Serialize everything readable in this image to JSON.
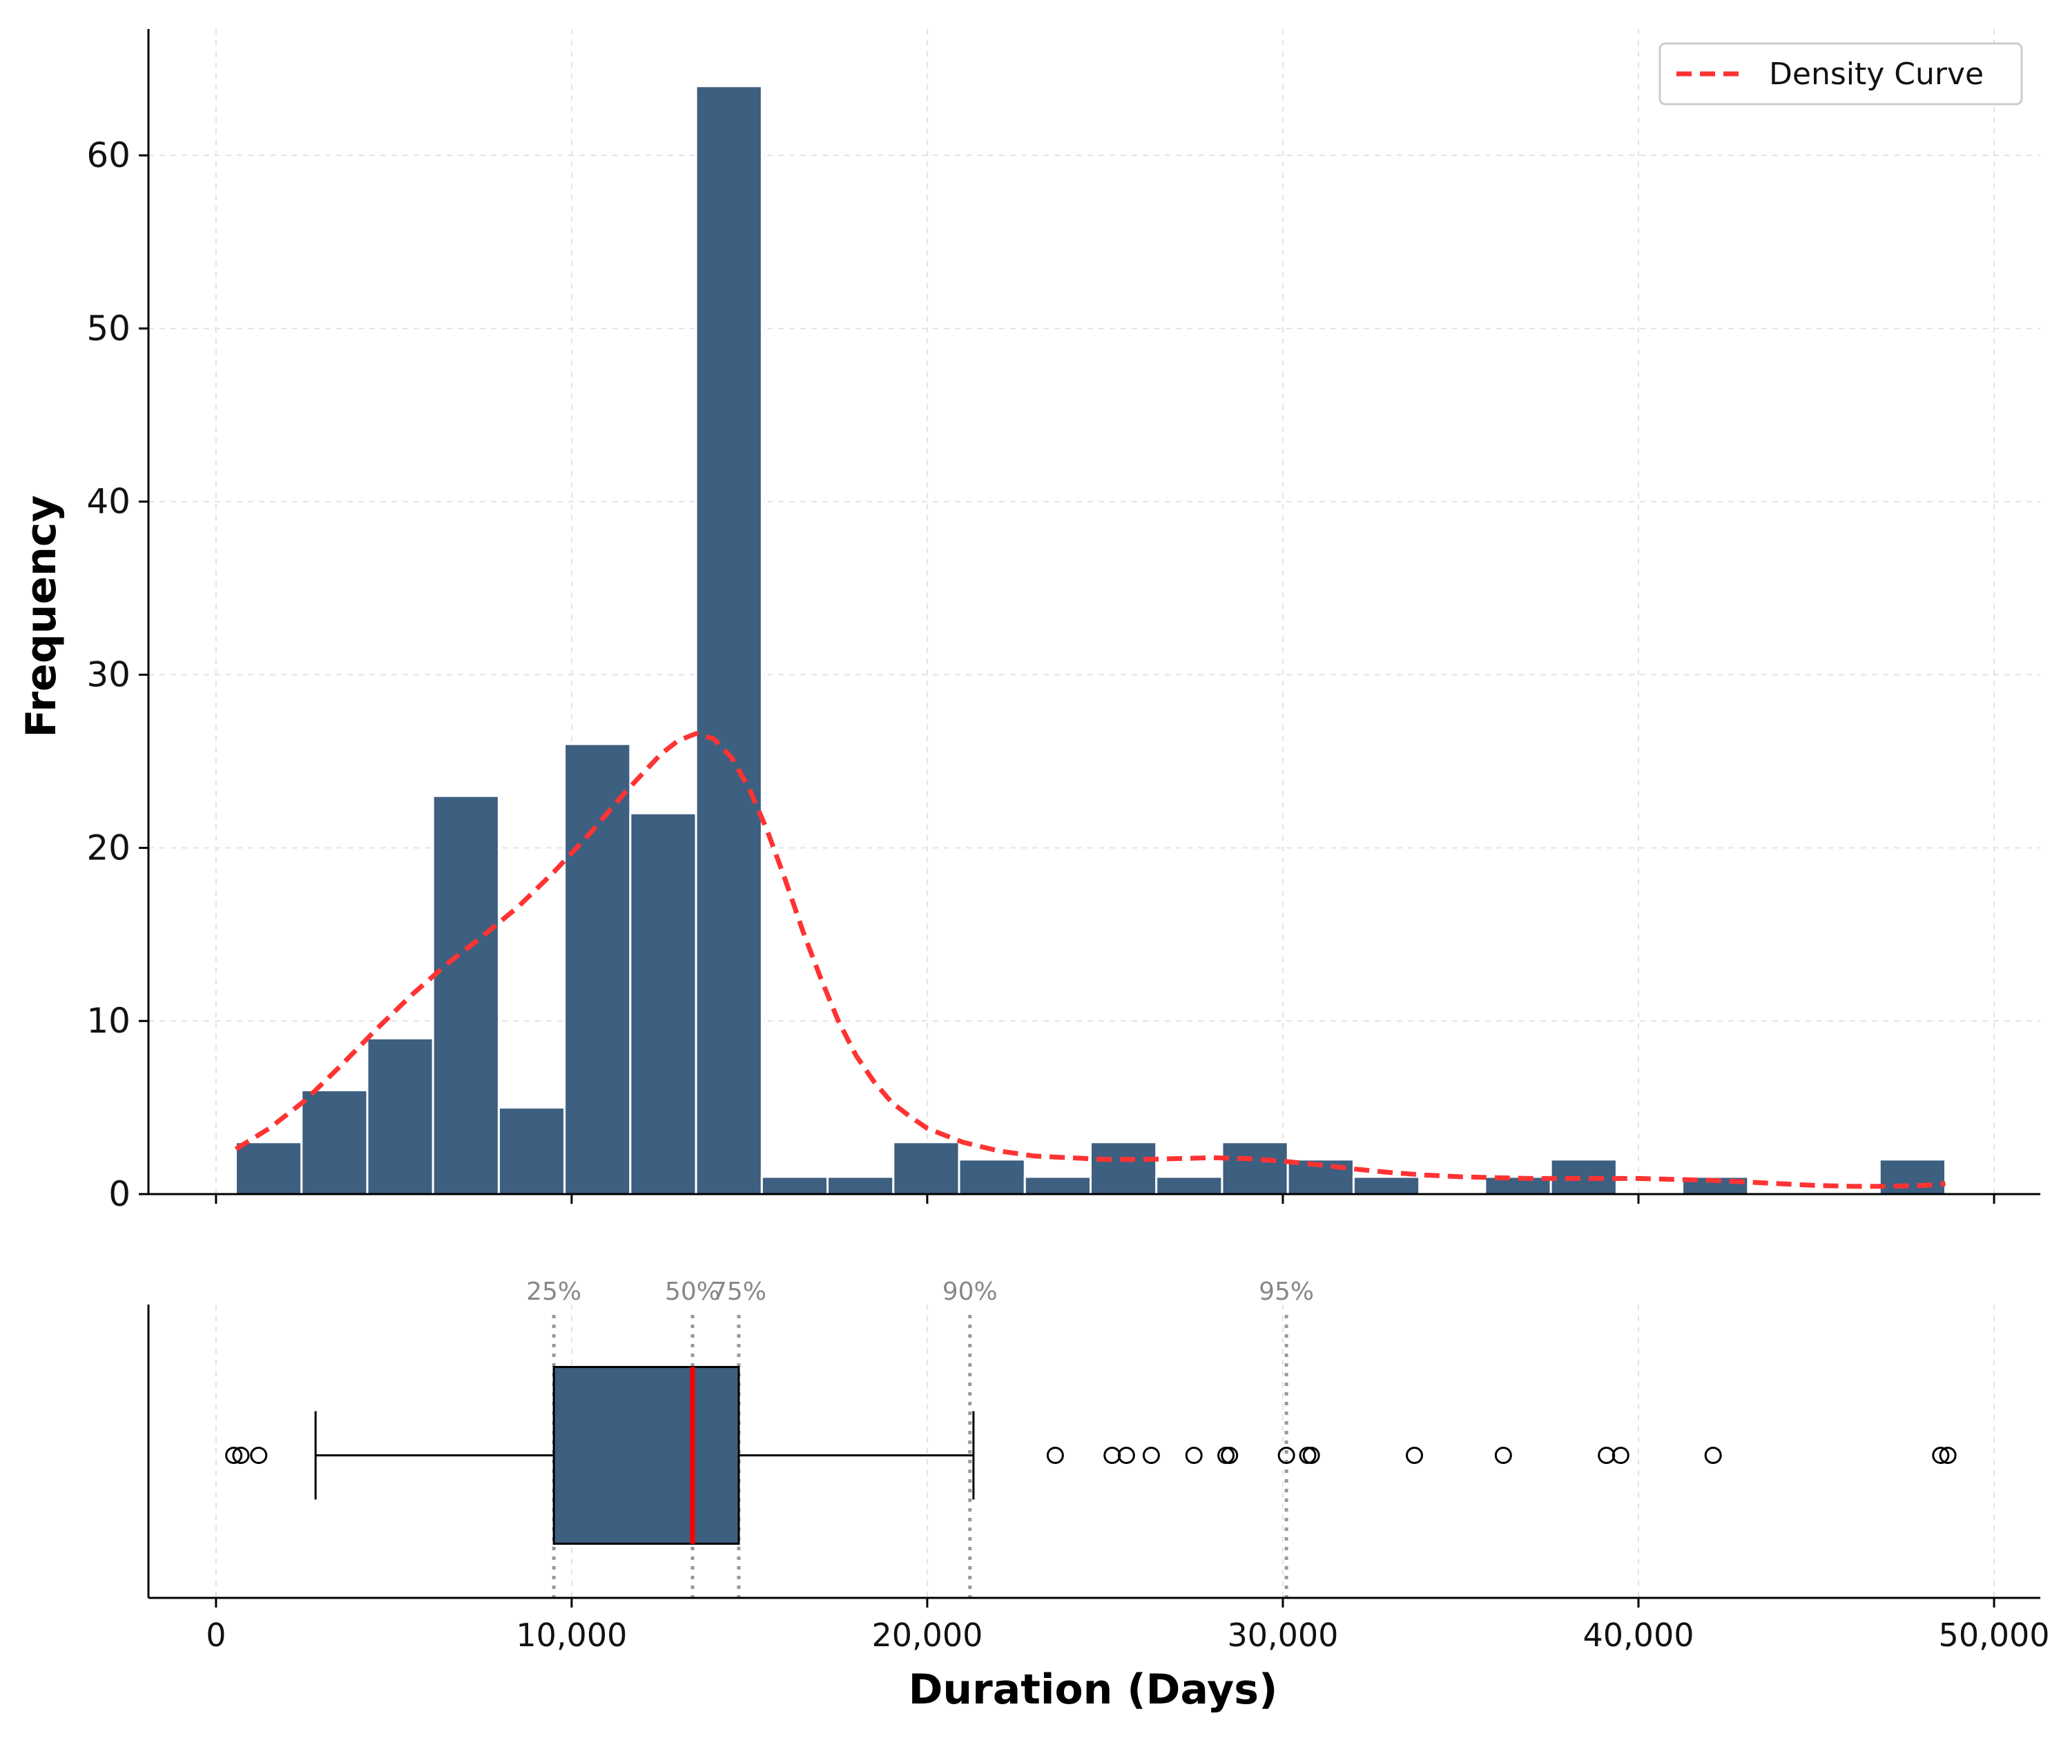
{
  "chart_data": [
    {
      "type": "bar",
      "subtype": "histogram",
      "bin_edges": [
        556,
        2405,
        4254,
        6103,
        7952,
        9801,
        11650,
        13499,
        15348,
        17197,
        19046,
        20895,
        22744,
        24593,
        26442,
        28291,
        30140,
        31989,
        33838,
        35687,
        37536,
        39385,
        41234,
        43083,
        44932,
        46781,
        48630
      ],
      "values": [
        3,
        6,
        9,
        23,
        5,
        26,
        22,
        64,
        1,
        1,
        3,
        2,
        1,
        3,
        1,
        3,
        2,
        1,
        0,
        1,
        2,
        0,
        1,
        0,
        0,
        2
      ],
      "bar_color": "#3d5f80",
      "density_curve": {
        "name": "Density Curve",
        "color": "#ff3333",
        "x": [
          556,
          1500,
          2500,
          3500,
          4500,
          5500,
          6500,
          7500,
          8500,
          9500,
          10500,
          11500,
          12500,
          13000,
          13500,
          14000,
          14500,
          15000,
          15500,
          16000,
          16500,
          17000,
          17500,
          18000,
          18500,
          19000,
          19500,
          20000,
          21000,
          22000,
          23000,
          24000,
          25000,
          26000,
          27000,
          28000,
          29000,
          30000,
          31000,
          32000,
          33000,
          34000,
          35000,
          36000,
          37000,
          38000,
          39000,
          40000,
          41000,
          42000,
          43000,
          44000,
          45000,
          46000,
          47000,
          48000,
          48630
        ],
        "y": [
          2.6,
          3.8,
          5.4,
          7.4,
          9.5,
          11.5,
          13.3,
          14.9,
          16.6,
          18.6,
          20.8,
          23.2,
          25.4,
          26.2,
          26.6,
          26.3,
          25.2,
          23.4,
          21.0,
          18.2,
          15.2,
          12.5,
          10.0,
          8.0,
          6.5,
          5.3,
          4.5,
          3.8,
          3.0,
          2.5,
          2.2,
          2.1,
          2.0,
          2.0,
          2.05,
          2.1,
          2.05,
          1.9,
          1.7,
          1.45,
          1.25,
          1.1,
          1.0,
          0.95,
          0.9,
          0.9,
          0.9,
          0.9,
          0.85,
          0.8,
          0.7,
          0.6,
          0.5,
          0.45,
          0.45,
          0.5,
          0.6
        ]
      },
      "ylabel": "Frequency",
      "ylim": [
        0,
        67.3
      ],
      "yticks": [
        "0",
        "10",
        "20",
        "30",
        "40",
        "50",
        "60"
      ],
      "legend": {
        "label": "Density Curve",
        "position": "top-right"
      },
      "grid": true
    },
    {
      "type": "boxplot",
      "orientation": "horizontal",
      "q1": 9500,
      "median": 13400,
      "q3": 14700,
      "whisker_low": 2800,
      "whisker_high": 21300,
      "outliers": [
        500,
        700,
        1200,
        23600,
        25200,
        25600,
        26300,
        27500,
        28400,
        28500,
        30100,
        30700,
        30800,
        33700,
        36200,
        39100,
        39500,
        42100,
        48500,
        48700
      ],
      "box_color": "#3d5f80",
      "median_color": "#ff0000",
      "percentiles": [
        {
          "label": "25%",
          "value": 9500
        },
        {
          "label": "50%",
          "value": 13400
        },
        {
          "label": "75%",
          "value": 14700
        },
        {
          "label": "90%",
          "value": 21200
        },
        {
          "label": "95%",
          "value": 30100
        }
      ],
      "xlabel": "Duration (Days)",
      "xlim": [
        -1900,
        51300
      ],
      "xticks": [
        {
          "value": 0,
          "label": "0"
        },
        {
          "value": 10000,
          "label": "10,000"
        },
        {
          "value": 20000,
          "label": "20,000"
        },
        {
          "value": 30000,
          "label": "30,000"
        },
        {
          "value": 40000,
          "label": "40,000"
        },
        {
          "value": 50000,
          "label": "50,000"
        }
      ]
    }
  ]
}
